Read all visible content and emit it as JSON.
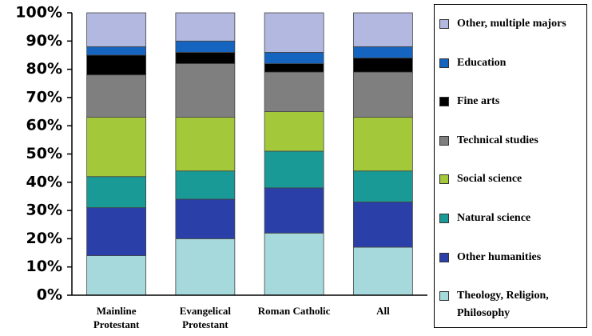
{
  "chart_data": {
    "type": "stacked_bar",
    "categories": [
      "Mainline Protestant",
      "Evangelical Protestant",
      "Roman Catholic",
      "All"
    ],
    "series": [
      {
        "name": "Theology, Religion, Philosophy",
        "color": "#a6d9dc",
        "values": [
          14,
          20,
          22,
          17
        ]
      },
      {
        "name": "Other humanities",
        "color": "#2a3fa8",
        "values": [
          17,
          14,
          16,
          16
        ]
      },
      {
        "name": "Natural science",
        "color": "#1a9a96",
        "values": [
          11,
          10,
          13,
          11
        ]
      },
      {
        "name": "Social science",
        "color": "#a3c93a",
        "values": [
          21,
          19,
          14,
          19
        ]
      },
      {
        "name": "Technical studies",
        "color": "#7f7f7f",
        "values": [
          15,
          19,
          14,
          16
        ]
      },
      {
        "name": "Fine arts",
        "color": "#000000",
        "values": [
          7,
          4,
          3,
          5
        ]
      },
      {
        "name": "Education",
        "color": "#1565c0",
        "values": [
          3,
          4,
          4,
          4
        ]
      },
      {
        "name": "Other, multiple majors",
        "color": "#b3b8e0",
        "values": [
          12,
          10,
          14,
          12
        ]
      }
    ],
    "ylim": [
      0,
      100
    ],
    "yticks": [
      {
        "value": 0,
        "label": "0%"
      },
      {
        "value": 10,
        "label": "10%"
      },
      {
        "value": 20,
        "label": "20%"
      },
      {
        "value": 30,
        "label": "30%"
      },
      {
        "value": 40,
        "label": "40%"
      },
      {
        "value": 50,
        "label": "50%"
      },
      {
        "value": 60,
        "label": "60%"
      },
      {
        "value": 70,
        "label": "70%"
      },
      {
        "value": 80,
        "label": "80%"
      },
      {
        "value": 90,
        "label": "90%"
      },
      {
        "value": 100,
        "label": "100%"
      }
    ],
    "legend": "right"
  }
}
